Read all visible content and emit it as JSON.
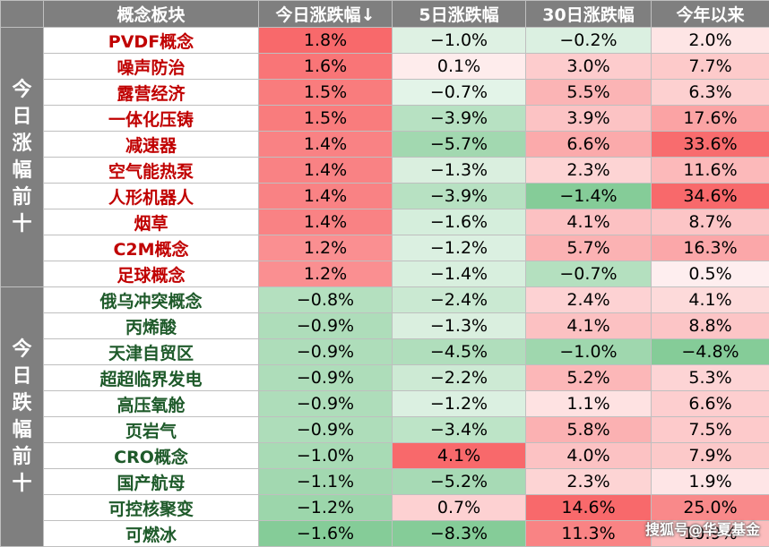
{
  "header": {
    "concept": "概念板块",
    "today": "今日涨跌幅↓",
    "d5": "5日涨跌幅",
    "d30": "30日涨跌幅",
    "ytd": "今年以来"
  },
  "groups": [
    {
      "label": [
        "今",
        "日",
        "涨",
        "幅",
        "前",
        "十"
      ]
    },
    {
      "label": [
        "今",
        "日",
        "跌",
        "幅",
        "前",
        "十"
      ]
    }
  ],
  "rows": [
    {
      "name": "PVDF概念",
      "today": "1.8%",
      "d5": "−1.0%",
      "d30": "−0.2%",
      "ytd": "2.0%"
    },
    {
      "name": "噪声防治",
      "today": "1.6%",
      "d5": "0.1%",
      "d30": "3.0%",
      "ytd": "7.7%"
    },
    {
      "name": "露营经济",
      "today": "1.5%",
      "d5": "−0.7%",
      "d30": "5.5%",
      "ytd": "6.3%"
    },
    {
      "name": "一体化压铸",
      "today": "1.5%",
      "d5": "−3.9%",
      "d30": "3.9%",
      "ytd": "17.6%"
    },
    {
      "name": "减速器",
      "today": "1.4%",
      "d5": "−5.7%",
      "d30": "6.6%",
      "ytd": "33.6%"
    },
    {
      "name": "空气能热泵",
      "today": "1.4%",
      "d5": "−1.3%",
      "d30": "2.3%",
      "ytd": "11.6%"
    },
    {
      "name": "人形机器人",
      "today": "1.4%",
      "d5": "−3.9%",
      "d30": "−1.4%",
      "ytd": "34.6%"
    },
    {
      "name": "烟草",
      "today": "1.4%",
      "d5": "−1.6%",
      "d30": "4.1%",
      "ytd": "8.7%"
    },
    {
      "name": "C2M概念",
      "today": "1.2%",
      "d5": "−1.2%",
      "d30": "5.7%",
      "ytd": "16.3%"
    },
    {
      "name": "足球概念",
      "today": "1.2%",
      "d5": "−1.4%",
      "d30": "−0.7%",
      "ytd": "0.5%"
    },
    {
      "name": "俄乌冲突概念",
      "today": "−0.8%",
      "d5": "−2.4%",
      "d30": "2.4%",
      "ytd": "4.1%"
    },
    {
      "name": "丙烯酸",
      "today": "−0.9%",
      "d5": "−1.3%",
      "d30": "4.1%",
      "ytd": "8.8%"
    },
    {
      "name": "天津自贸区",
      "today": "−0.9%",
      "d5": "−4.5%",
      "d30": "−1.0%",
      "ytd": "−4.8%"
    },
    {
      "name": "超超临界发电",
      "today": "−0.9%",
      "d5": "−2.2%",
      "d30": "5.2%",
      "ytd": "5.3%"
    },
    {
      "name": "高压氧舱",
      "today": "−0.9%",
      "d5": "−1.2%",
      "d30": "1.1%",
      "ytd": "6.6%"
    },
    {
      "name": "页岩气",
      "today": "−0.9%",
      "d5": "−3.4%",
      "d30": "5.8%",
      "ytd": "7.5%"
    },
    {
      "name": "CRO概念",
      "today": "−1.0%",
      "d5": "4.1%",
      "d30": "4.0%",
      "ytd": "7.9%"
    },
    {
      "name": "国产航母",
      "today": "−1.1%",
      "d5": "−5.2%",
      "d30": "2.3%",
      "ytd": "1.9%"
    },
    {
      "name": "可控核聚变",
      "today": "−1.2%",
      "d5": "0.7%",
      "d30": "14.6%",
      "ytd": "25.0%"
    },
    {
      "name": "可燃冰",
      "today": "−1.6%",
      "d5": "−8.3%",
      "d30": "11.3%",
      "ytd": "10.9%"
    }
  ],
  "colors": {
    "header_bg": "#7f7f7f",
    "up_text": "#c00000",
    "down_text": "#1e5a2a",
    "pos_heat": "#f8696b",
    "neg_heat": "#63be7b"
  },
  "watermark": "搜狐号@华夏基金"
}
